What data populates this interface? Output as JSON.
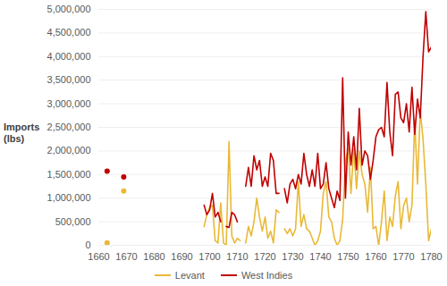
{
  "chart_data": {
    "type": "line",
    "y_label": "Imports (lbs)",
    "x": [
      1660,
      1661,
      1662,
      1663,
      1664,
      1665,
      1666,
      1667,
      1668,
      1669,
      1670,
      1671,
      1672,
      1673,
      1674,
      1675,
      1676,
      1677,
      1678,
      1679,
      1680,
      1681,
      1682,
      1683,
      1684,
      1685,
      1686,
      1687,
      1688,
      1689,
      1690,
      1691,
      1692,
      1693,
      1694,
      1695,
      1696,
      1697,
      1698,
      1699,
      1700,
      1701,
      1702,
      1703,
      1704,
      1705,
      1706,
      1707,
      1708,
      1709,
      1710,
      1711,
      1712,
      1713,
      1714,
      1715,
      1716,
      1717,
      1718,
      1719,
      1720,
      1721,
      1722,
      1723,
      1724,
      1725,
      1726,
      1727,
      1728,
      1729,
      1730,
      1731,
      1732,
      1733,
      1734,
      1735,
      1736,
      1737,
      1738,
      1739,
      1740,
      1741,
      1742,
      1743,
      1744,
      1745,
      1746,
      1747,
      1748,
      1749,
      1750,
      1751,
      1752,
      1753,
      1754,
      1755,
      1756,
      1757,
      1758,
      1759,
      1760,
      1761,
      1762,
      1763,
      1764,
      1765,
      1766,
      1767,
      1768,
      1769,
      1770,
      1771,
      1772,
      1773,
      1774,
      1775,
      1776,
      1777,
      1778,
      1779,
      1780
    ],
    "series": [
      {
        "name": "Levant",
        "color": "#e9b937",
        "values": [
          null,
          null,
          null,
          50000,
          null,
          null,
          null,
          null,
          null,
          1150000,
          null,
          null,
          null,
          null,
          null,
          null,
          null,
          null,
          null,
          null,
          null,
          null,
          null,
          null,
          null,
          null,
          null,
          null,
          null,
          null,
          null,
          null,
          null,
          null,
          null,
          null,
          null,
          null,
          400000,
          650000,
          800000,
          850000,
          100000,
          50000,
          900000,
          50000,
          0,
          2200000,
          200000,
          50000,
          150000,
          100000,
          null,
          50000,
          400000,
          200000,
          500000,
          1000000,
          600000,
          300000,
          600000,
          150000,
          300000,
          50000,
          750000,
          700000,
          null,
          350000,
          250000,
          350000,
          200000,
          350000,
          1350000,
          400000,
          650000,
          350000,
          300000,
          150000,
          0,
          100000,
          300000,
          1100000,
          1350000,
          600000,
          500000,
          150000,
          0,
          100000,
          550000,
          1750000,
          2050000,
          1100000,
          2050000,
          1200000,
          2000000,
          1500000,
          1300000,
          700000,
          1650000,
          350000,
          400000,
          0,
          500000,
          1150000,
          100000,
          600000,
          400000,
          1050000,
          1350000,
          350000,
          850000,
          1000000,
          500000,
          850000,
          2650000,
          1300000,
          2850000,
          2250000,
          1300000,
          100000,
          350000
        ]
      },
      {
        "name": "West Indies",
        "color": "#c00000",
        "values": [
          null,
          null,
          null,
          1570000,
          null,
          null,
          null,
          null,
          null,
          1450000,
          null,
          null,
          null,
          null,
          null,
          null,
          null,
          null,
          null,
          null,
          null,
          null,
          null,
          null,
          null,
          null,
          null,
          null,
          null,
          null,
          null,
          null,
          null,
          null,
          null,
          null,
          null,
          null,
          850000,
          650000,
          750000,
          1100000,
          600000,
          700000,
          500000,
          null,
          400000,
          380000,
          700000,
          650000,
          500000,
          null,
          null,
          1250000,
          1650000,
          1250000,
          1900000,
          1600000,
          1800000,
          1250000,
          1450000,
          1250000,
          1950000,
          1800000,
          1100000,
          1100000,
          null,
          1200000,
          900000,
          1300000,
          1400000,
          1200000,
          1500000,
          1300000,
          1950000,
          1500000,
          1250000,
          1600000,
          1250000,
          1950000,
          1200000,
          1300000,
          1750000,
          1200000,
          1000000,
          800000,
          1150000,
          950000,
          3550000,
          1000000,
          2400000,
          1700000,
          2300000,
          1600000,
          2900000,
          1700000,
          2000000,
          1900000,
          1400000,
          1800000,
          2300000,
          2450000,
          2500000,
          2300000,
          3450000,
          2400000,
          1900000,
          3200000,
          3250000,
          2700000,
          2600000,
          3000000,
          2400000,
          3350000,
          2350000,
          3100000,
          2700000,
          4000000,
          4950000,
          4100000,
          4200000
        ]
      }
    ],
    "xlim": [
      1660,
      1780
    ],
    "xticks": [
      1660,
      1670,
      1680,
      1690,
      1700,
      1710,
      1720,
      1730,
      1740,
      1750,
      1760,
      1770,
      1780
    ],
    "ylim": [
      0,
      5000000
    ],
    "yticks": [
      0,
      {
        "value": 500000,
        "label": "500,000"
      },
      {
        "value": 1000000,
        "label": "1,000,000"
      },
      {
        "value": 1500000,
        "label": "1,500,000"
      },
      {
        "value": 2000000,
        "label": "2,000,000"
      },
      {
        "value": 2500000,
        "label": "2,500,000"
      },
      {
        "value": 3000000,
        "label": "3,000,000"
      },
      {
        "value": 3500000,
        "label": "3,500,000"
      },
      {
        "value": 4000000,
        "label": "4,000,000"
      },
      {
        "value": 4500000,
        "label": "4,500,000"
      },
      {
        "value": 5000000,
        "label": "5,000,000"
      }
    ],
    "grid": true,
    "legend": "bottom"
  }
}
